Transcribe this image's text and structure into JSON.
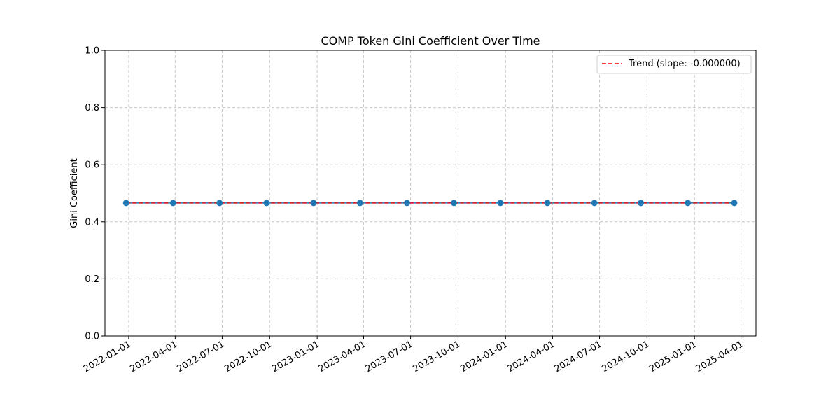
{
  "chart_data": {
    "type": "line",
    "title": "COMP Token Gini Coefficient Over Time",
    "xlabel": "",
    "ylabel": "Gini Coefficient",
    "ylim": [
      0,
      1
    ],
    "xlim": [
      "2021-11-16",
      "2025-04-30"
    ],
    "x_ticks": [
      "2022-01-01",
      "2022-04-01",
      "2022-07-01",
      "2022-10-01",
      "2023-01-01",
      "2023-04-01",
      "2023-07-01",
      "2023-10-01",
      "2024-01-01",
      "2024-04-01",
      "2024-07-01",
      "2024-10-01",
      "2025-01-01",
      "2025-04-01"
    ],
    "y_ticks": [
      "0.0",
      "0.2",
      "0.4",
      "0.6",
      "0.8",
      "1.0"
    ],
    "grid": true,
    "legend_position": "top-right",
    "series": [
      {
        "color": "#1f77b4",
        "marker": "circle",
        "x": [
          "2021-12-27",
          "2022-03-28",
          "2022-06-26",
          "2022-09-25",
          "2022-12-25",
          "2023-03-25",
          "2023-06-24",
          "2023-09-23",
          "2023-12-22",
          "2024-03-22",
          "2024-06-21",
          "2024-09-19",
          "2024-12-19",
          "2025-03-19"
        ],
        "values": [
          0.466,
          0.466,
          0.466,
          0.466,
          0.466,
          0.466,
          0.466,
          0.466,
          0.466,
          0.466,
          0.466,
          0.466,
          0.466,
          0.466
        ]
      },
      {
        "name": "Trend (slope: -0.000000)",
        "color": "#ff0000",
        "style": "dashed",
        "x": [
          "2021-12-27",
          "2025-03-19"
        ],
        "values": [
          0.466,
          0.466
        ]
      }
    ]
  }
}
